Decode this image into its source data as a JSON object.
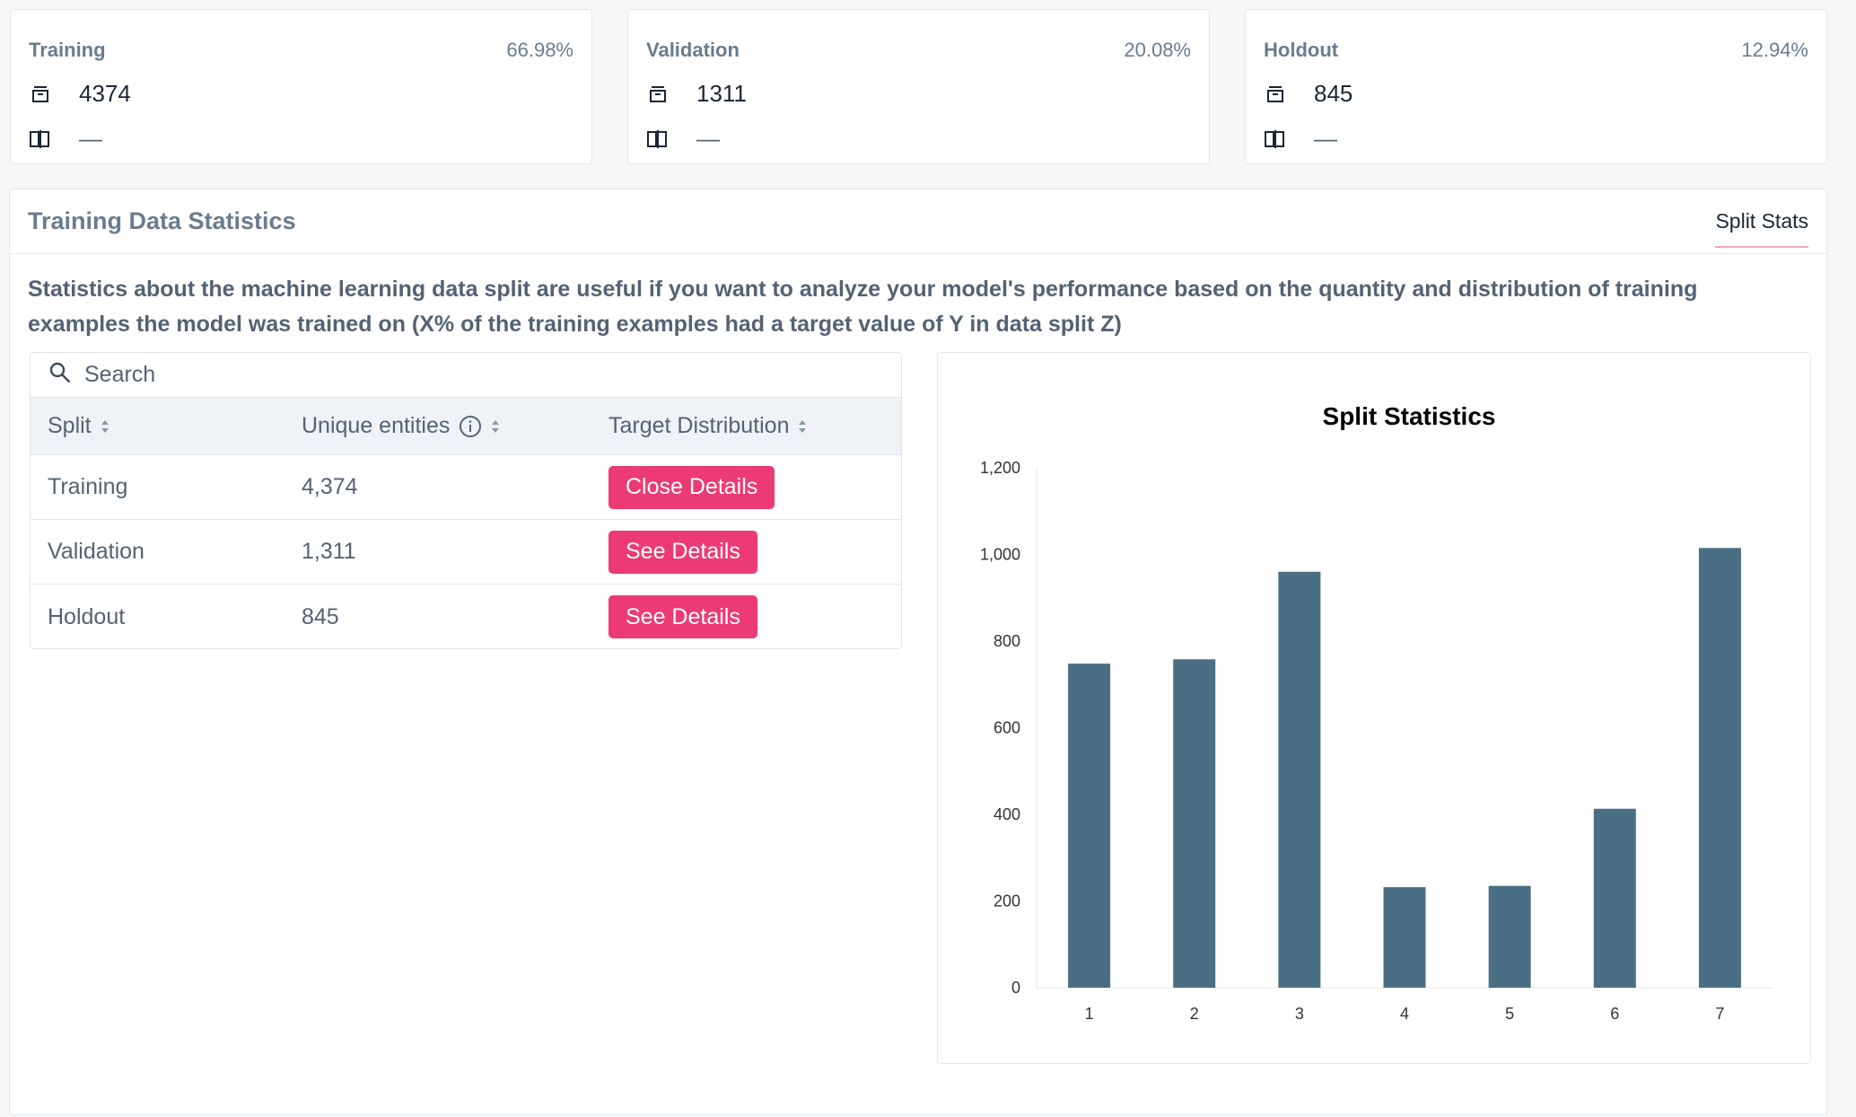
{
  "split_cards": [
    {
      "name": "Training",
      "percent": "66.98%",
      "count": "4374",
      "secondary": "—"
    },
    {
      "name": "Validation",
      "percent": "20.08%",
      "count": "1311",
      "secondary": "—"
    },
    {
      "name": "Holdout",
      "percent": "12.94%",
      "count": "845",
      "secondary": "—"
    }
  ],
  "main": {
    "title": "Training Data Statistics",
    "tab_label": "Split Stats",
    "description": "Statistics about the machine learning data split are useful if you want to analyze your model's performance based on the quantity and distribution of training examples the model was trained on (X% of the training examples had a target value of Y in data split Z)"
  },
  "table": {
    "search_placeholder": "Search",
    "headers": [
      "Split",
      "Unique entities",
      "Target Distribution"
    ],
    "rows": [
      {
        "split": "Training",
        "unique": "4,374",
        "action": "Close Details"
      },
      {
        "split": "Validation",
        "unique": "1,311",
        "action": "See Details"
      },
      {
        "split": "Holdout",
        "unique": "845",
        "action": "See Details"
      }
    ]
  },
  "colors": {
    "accent": "#ec3a74",
    "bar": "#4a6f84"
  },
  "icons": {
    "count": "stack-icon",
    "secondary": "book-icon",
    "search": "search-icon",
    "info": "info-icon",
    "sort": "sort-icon"
  },
  "chart_data": {
    "type": "bar",
    "title": "Split Statistics",
    "categories": [
      "1",
      "2",
      "3",
      "4",
      "5",
      "6",
      "7"
    ],
    "values": [
      748,
      758,
      960,
      232,
      235,
      413,
      1015
    ],
    "ylim": [
      0,
      1200
    ],
    "yticks": [
      "0",
      "200",
      "400",
      "600",
      "800",
      "1,000",
      "1,200"
    ],
    "xlabel": "",
    "ylabel": "",
    "grid": false
  }
}
